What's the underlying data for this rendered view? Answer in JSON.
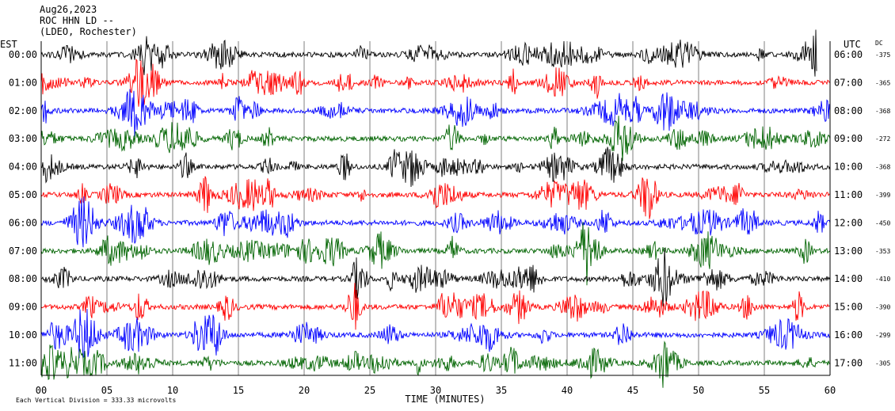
{
  "header": {
    "date": "Aug26,2023",
    "station": "ROC HHN LD --",
    "network": "(LDEO, Rochester)"
  },
  "chart_data": {
    "type": "line",
    "subtype": "helicorder",
    "left_axis_title": "EST",
    "right_axis_title": "UTC",
    "dc_title": "DC",
    "xlabel": "TIME (MINUTES)",
    "x_ticks": [
      0,
      5,
      10,
      15,
      20,
      25,
      30,
      35,
      40,
      45,
      50,
      55,
      60
    ],
    "x_tick_labels": [
      "00",
      "05",
      "10",
      "15",
      "20",
      "25",
      "30",
      "35",
      "40",
      "45",
      "50",
      "55",
      "60"
    ],
    "xlim": [
      0,
      60
    ],
    "footnote": "Each Vertical Division =  333.33 microvolts",
    "trace_colors": [
      "#000000",
      "#ff0000",
      "#0000ff",
      "#006400"
    ],
    "rows": [
      {
        "est": "00:00",
        "utc": "06:00",
        "dc": "-375",
        "end_minute": 59
      },
      {
        "est": "01:00",
        "utc": "07:00",
        "dc": "-365",
        "end_minute": 60
      },
      {
        "est": "02:00",
        "utc": "08:00",
        "dc": "-368",
        "end_minute": 60
      },
      {
        "est": "03:00",
        "utc": "09:00",
        "dc": "-272",
        "end_minute": 60
      },
      {
        "est": "04:00",
        "utc": "10:00",
        "dc": "-368",
        "end_minute": 60
      },
      {
        "est": "05:00",
        "utc": "11:00",
        "dc": "-399",
        "end_minute": 60
      },
      {
        "est": "06:00",
        "utc": "12:00",
        "dc": "-450",
        "end_minute": 60
      },
      {
        "est": "07:00",
        "utc": "13:00",
        "dc": "-353",
        "end_minute": 60
      },
      {
        "est": "08:00",
        "utc": "14:00",
        "dc": "-410",
        "end_minute": 60
      },
      {
        "est": "09:00",
        "utc": "15:00",
        "dc": "-390",
        "end_minute": 60
      },
      {
        "est": "10:00",
        "utc": "16:00",
        "dc": "-299",
        "end_minute": 60
      },
      {
        "est": "11:00",
        "utc": "17:00",
        "dc": "-305",
        "end_minute": 60
      }
    ]
  }
}
